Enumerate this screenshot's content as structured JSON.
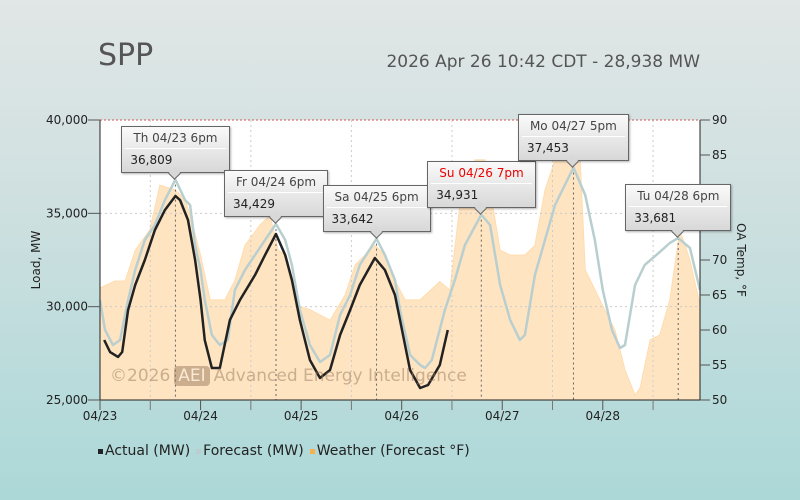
{
  "header": {
    "title": "SPP",
    "subtitle": "2026 Apr 26 10:42 CDT - 28,938 MW"
  },
  "watermark": {
    "copyright": "©2026",
    "logo": "AEI",
    "name": "Advanced Energy Intelligence"
  },
  "chart_data": {
    "type": "line",
    "x_unit": "hours since 04/23 00:00",
    "xlim": [
      0,
      143.2
    ],
    "x_ticks": [
      {
        "h": 0,
        "label": "04/23"
      },
      {
        "h": 24,
        "label": "04/24"
      },
      {
        "h": 48,
        "label": "04/25"
      },
      {
        "h": 72,
        "label": "04/26"
      },
      {
        "h": 96,
        "label": "04/27"
      },
      {
        "h": 120,
        "label": "04/28"
      }
    ],
    "ylabel": "Load, MW",
    "ylim": [
      25000,
      40000
    ],
    "y_ticks": [
      {
        "v": 25000,
        "label": "25,000"
      },
      {
        "v": 30000,
        "label": "30,000"
      },
      {
        "v": 35000,
        "label": "35,000"
      },
      {
        "v": 40000,
        "label": "40,000"
      }
    ],
    "y2label": "OA Temp, °F",
    "y2lim": [
      50,
      90
    ],
    "y2_ticks": [
      {
        "v": 50,
        "label": "50"
      },
      {
        "v": 55,
        "label": "55"
      },
      {
        "v": 60,
        "label": "60"
      },
      {
        "v": 65,
        "label": "65"
      },
      {
        "v": 70,
        "label": "70"
      },
      {
        "v": 75,
        "label": ""
      },
      {
        "v": 80,
        "label": ""
      },
      {
        "v": 85,
        "label": "85"
      },
      {
        "v": 90,
        "label": "90"
      }
    ],
    "grid": true,
    "legend": {
      "placement": "bottom-left",
      "items": [
        {
          "name": "Actual (MW)",
          "color": "#222222"
        },
        {
          "name": "Forecast (MW)",
          "color": "#b9cfcf"
        },
        {
          "name": "Weather (Forecast °F)",
          "color": "#f7b04a"
        }
      ]
    },
    "series": [
      {
        "name": "Forecast (MW)",
        "color": "#b9cfcf",
        "points": [
          [
            0,
            30357
          ],
          [
            1.2,
            28750
          ],
          [
            3.1,
            27946
          ],
          [
            4.8,
            28214
          ],
          [
            6.7,
            30357
          ],
          [
            8.4,
            31964
          ],
          [
            10.7,
            33571
          ],
          [
            13.1,
            34375
          ],
          [
            15.5,
            35714
          ],
          [
            18,
            36809
          ],
          [
            20.3,
            35714
          ],
          [
            21.5,
            35446
          ],
          [
            22.7,
            33304
          ],
          [
            24,
            31964
          ],
          [
            25,
            30357
          ],
          [
            26.7,
            28482
          ],
          [
            28.6,
            27946
          ],
          [
            30.5,
            28214
          ],
          [
            32.2,
            30893
          ],
          [
            34.6,
            31964
          ],
          [
            37,
            32768
          ],
          [
            39.4,
            33571
          ],
          [
            42,
            34429
          ],
          [
            44.2,
            33571
          ],
          [
            45.8,
            32232
          ],
          [
            47.7,
            29821
          ],
          [
            50.1,
            27946
          ],
          [
            52.5,
            27036
          ],
          [
            54.9,
            27411
          ],
          [
            57.3,
            29554
          ],
          [
            59.7,
            30625
          ],
          [
            62,
            32232
          ],
          [
            66,
            33642
          ],
          [
            68,
            32768
          ],
          [
            70.4,
            31429
          ],
          [
            71.6,
            29821
          ],
          [
            74,
            27411
          ],
          [
            76.4,
            26875
          ],
          [
            77.6,
            26714
          ],
          [
            79.2,
            27143
          ],
          [
            82.3,
            29821
          ],
          [
            84.7,
            31429
          ],
          [
            87.1,
            33304
          ],
          [
            91,
            34931
          ],
          [
            93.1,
            34375
          ],
          [
            95.5,
            31161
          ],
          [
            97.9,
            29286
          ],
          [
            100.2,
            28214
          ],
          [
            101.4,
            28482
          ],
          [
            103.8,
            31696
          ],
          [
            106.2,
            33571
          ],
          [
            108.6,
            35446
          ],
          [
            113,
            37453
          ],
          [
            115.8,
            35982
          ],
          [
            118.1,
            33571
          ],
          [
            120,
            30893
          ],
          [
            122.2,
            28750
          ],
          [
            124.1,
            27786
          ],
          [
            125.3,
            27946
          ],
          [
            127.7,
            31161
          ],
          [
            130,
            32232
          ],
          [
            133.6,
            32929
          ],
          [
            136,
            33411
          ],
          [
            138,
            33681
          ],
          [
            140.8,
            33143
          ],
          [
            143.2,
            30893
          ]
        ]
      },
      {
        "name": "Actual (MW)",
        "color": "#222222",
        "points": [
          [
            1,
            28214
          ],
          [
            2.4,
            27571
          ],
          [
            4.3,
            27304
          ],
          [
            5.3,
            27571
          ],
          [
            6.7,
            29821
          ],
          [
            8.4,
            31161
          ],
          [
            10.7,
            32500
          ],
          [
            13.1,
            34107
          ],
          [
            15.5,
            35179
          ],
          [
            18,
            35929
          ],
          [
            19.1,
            35714
          ],
          [
            21,
            34643
          ],
          [
            22.7,
            32500
          ],
          [
            24,
            30357
          ],
          [
            25,
            28214
          ],
          [
            26.7,
            26714
          ],
          [
            28.6,
            26714
          ],
          [
            31,
            29286
          ],
          [
            33.4,
            30357
          ],
          [
            37,
            31696
          ],
          [
            39.4,
            32768
          ],
          [
            42,
            33893
          ],
          [
            44.2,
            32768
          ],
          [
            45.8,
            31429
          ],
          [
            47.7,
            29286
          ],
          [
            50.1,
            27143
          ],
          [
            52.5,
            26179
          ],
          [
            54.9,
            26607
          ],
          [
            57.3,
            28482
          ],
          [
            59.7,
            29821
          ],
          [
            62,
            31161
          ],
          [
            65.6,
            32607
          ],
          [
            68,
            31964
          ],
          [
            70.4,
            30625
          ],
          [
            71.6,
            29286
          ],
          [
            74,
            26607
          ],
          [
            76.4,
            25643
          ],
          [
            78.3,
            25804
          ],
          [
            81.1,
            26875
          ],
          [
            83,
            28750
          ]
        ]
      },
      {
        "name": "Weather (Forecast °F)",
        "color": "#ffe4c0",
        "axis": "y2",
        "points": [
          [
            0,
            66
          ],
          [
            3.6,
            67
          ],
          [
            6,
            67
          ],
          [
            8.4,
            71.4
          ],
          [
            11.9,
            74.3
          ],
          [
            14.3,
            80.7
          ],
          [
            18,
            80
          ],
          [
            20.3,
            78.6
          ],
          [
            21.5,
            76.4
          ],
          [
            24,
            70.7
          ],
          [
            26.3,
            64.3
          ],
          [
            29.8,
            64.3
          ],
          [
            32.2,
            67.1
          ],
          [
            34.6,
            72.1
          ],
          [
            38.2,
            75
          ],
          [
            40.6,
            76.4
          ],
          [
            42.5,
            71.4
          ],
          [
            44.2,
            70.7
          ],
          [
            46.5,
            63.6
          ],
          [
            50.1,
            62.9
          ],
          [
            54.9,
            61.4
          ],
          [
            58.5,
            65
          ],
          [
            60.9,
            69.3
          ],
          [
            65.6,
            72.1
          ],
          [
            68,
            70.7
          ],
          [
            70.4,
            67.1
          ],
          [
            72.8,
            64.3
          ],
          [
            76.4,
            64.3
          ],
          [
            81.1,
            66.9
          ],
          [
            83.5,
            65.7
          ],
          [
            85.9,
            77.9
          ],
          [
            89.5,
            84.3
          ],
          [
            91.9,
            84.3
          ],
          [
            93.1,
            80
          ],
          [
            95.5,
            71.4
          ],
          [
            97.9,
            70.7
          ],
          [
            101.4,
            70.7
          ],
          [
            103.8,
            72.1
          ],
          [
            106.2,
            80
          ],
          [
            108.6,
            84.3
          ],
          [
            111,
            85
          ],
          [
            114.6,
            84.3
          ],
          [
            115.8,
            68.6
          ],
          [
            119.3,
            64.3
          ],
          [
            122.9,
            60
          ],
          [
            125.3,
            54.3
          ],
          [
            127.7,
            50.7
          ],
          [
            128.9,
            51.7
          ],
          [
            131.3,
            58.6
          ],
          [
            133.6,
            59.3
          ],
          [
            136,
            64.3
          ],
          [
            138.4,
            74.3
          ],
          [
            140.8,
            70
          ],
          [
            143.2,
            63.6
          ]
        ]
      }
    ],
    "peaks": [
      {
        "h": 18,
        "label": "Th 04/23 6pm",
        "value": "36,809",
        "mw": 36809
      },
      {
        "h": 42,
        "label": "Fr 04/24 6pm",
        "value": "34,429",
        "mw": 34429
      },
      {
        "h": 66,
        "label": "Sa 04/25 6pm",
        "value": "33,642",
        "mw": 33642
      },
      {
        "h": 91,
        "label": "Su 04/26 7pm",
        "value": "34,931",
        "mw": 34931,
        "current": true
      },
      {
        "h": 113,
        "label": "Mo 04/27 5pm",
        "value": "37,453",
        "mw": 37453
      },
      {
        "h": 138,
        "label": "Tu 04/28 6pm",
        "value": "33,681",
        "mw": 33681
      }
    ]
  }
}
